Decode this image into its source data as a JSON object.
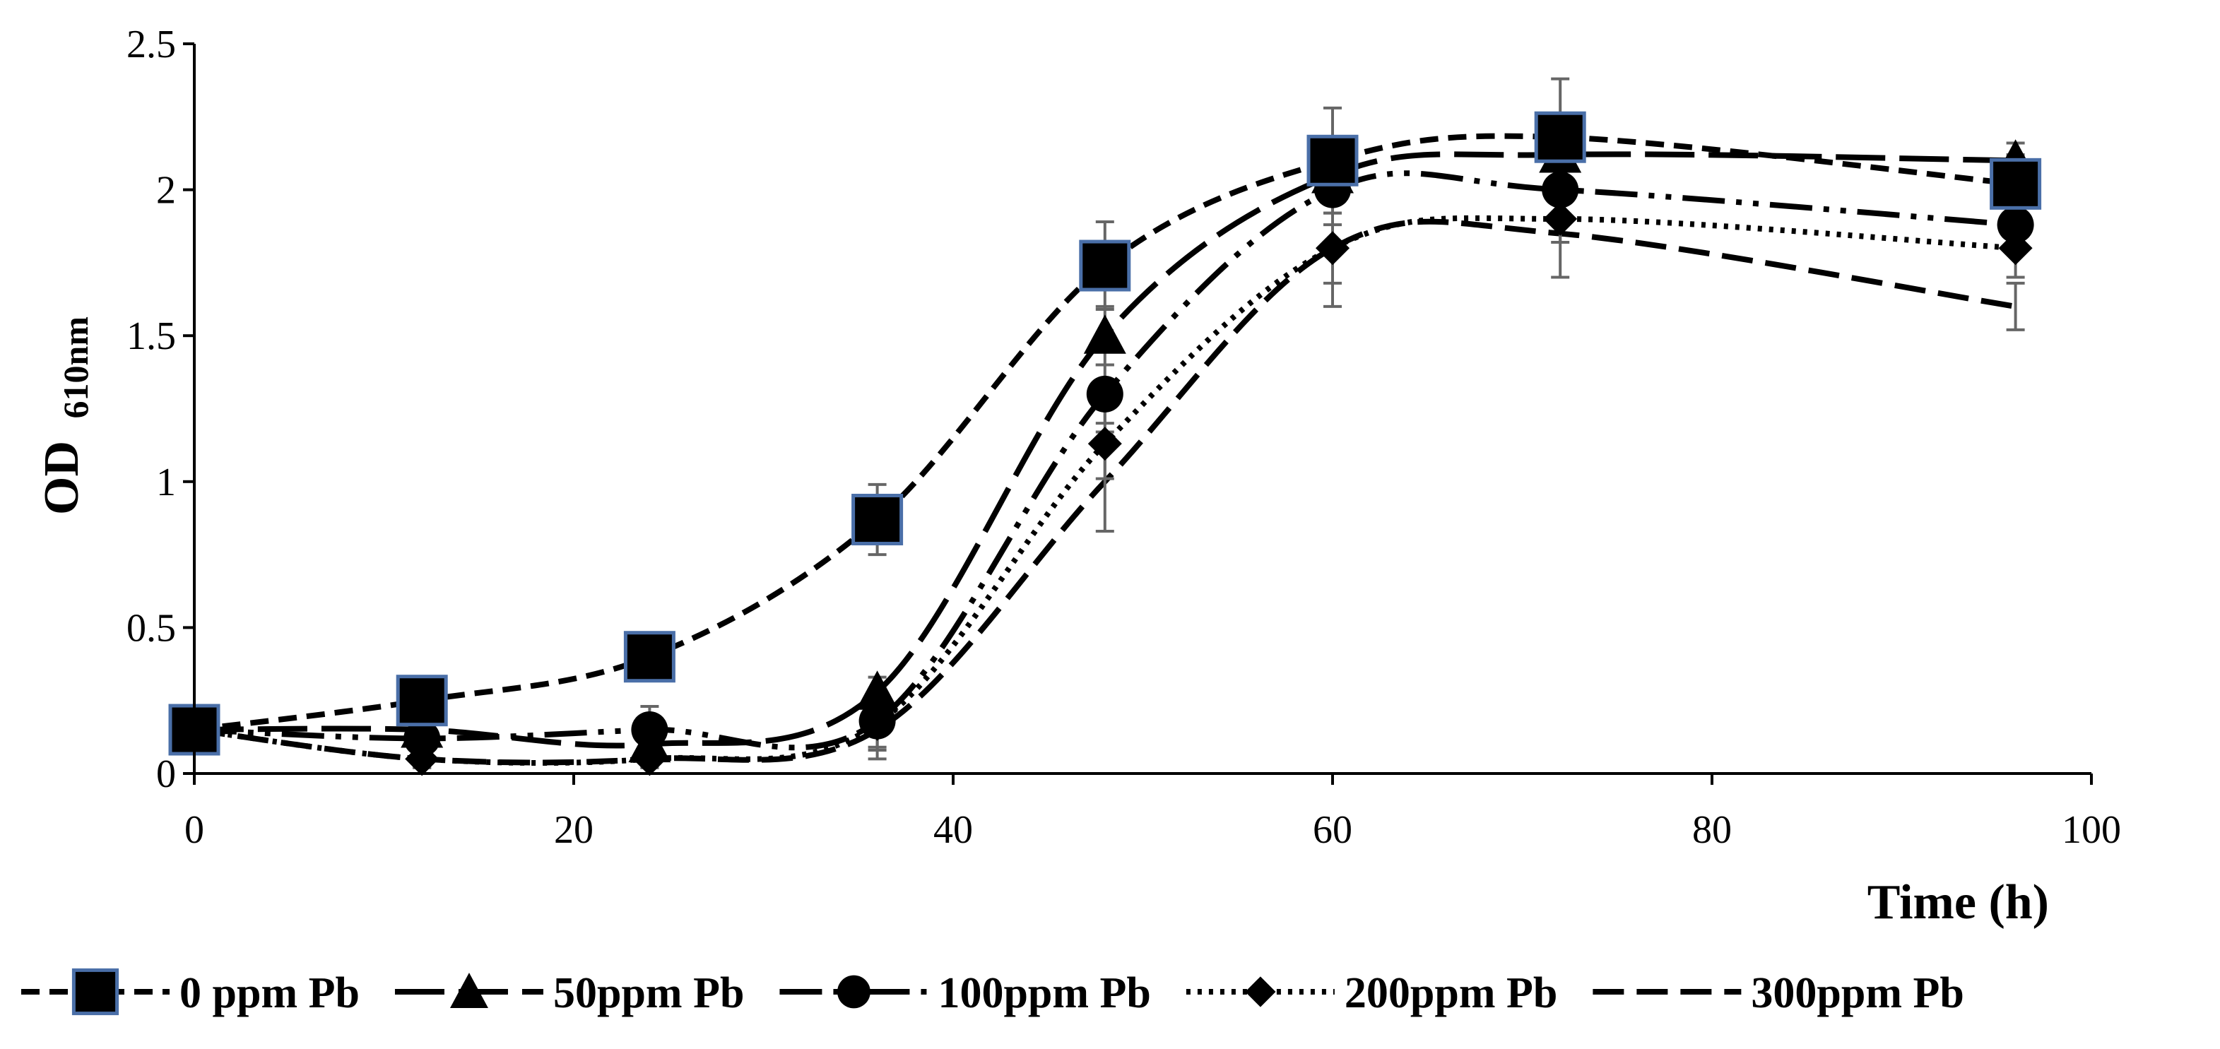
{
  "chart_data": {
    "type": "line",
    "title": "",
    "xlabel": "Time (h)",
    "ylabel_main": "OD",
    "ylabel_sub": "610nm",
    "xlim": [
      0,
      100
    ],
    "ylim": [
      0,
      2.5
    ],
    "xticks": [
      "0",
      "20",
      "40",
      "60",
      "80",
      "100"
    ],
    "yticks": [
      "0",
      "0.5",
      "1",
      "1.5",
      "2",
      "2.5"
    ],
    "grid": false,
    "legend_position": "bottom",
    "x": [
      0,
      12,
      24,
      36,
      48,
      60,
      72,
      96
    ],
    "series": [
      {
        "name": "0 ppm Pb",
        "marker": "square",
        "dash": "dashed",
        "values": [
          0.15,
          0.25,
          0.4,
          0.87,
          1.74,
          2.1,
          2.18,
          2.02
        ],
        "errors": [
          0.05,
          0.05,
          0.03,
          0.12,
          0.15,
          0.18,
          0.2,
          0.1
        ]
      },
      {
        "name": "50ppm Pb",
        "marker": "triangle",
        "dash": "long-dash",
        "values": [
          0.15,
          0.15,
          0.1,
          0.28,
          1.5,
          2.05,
          2.12,
          2.1
        ],
        "errors": [
          0.03,
          0.03,
          0.03,
          0.05,
          0.1,
          0.1,
          0.1,
          0.06
        ]
      },
      {
        "name": "100ppm Pb",
        "marker": "circle",
        "dash": "long-dash-dot-dot",
        "values": [
          0.15,
          0.12,
          0.15,
          0.18,
          1.3,
          2.0,
          2.0,
          1.88
        ],
        "errors": [
          0.03,
          0.05,
          0.08,
          0.1,
          0.1,
          0.12,
          0.12,
          0.08
        ]
      },
      {
        "name": "200ppm Pb",
        "marker": "diamond",
        "dash": "dotted",
        "values": [
          0.15,
          0.05,
          0.05,
          0.17,
          1.13,
          1.8,
          1.9,
          1.8
        ],
        "errors": [
          0.03,
          0.03,
          0.03,
          0.08,
          0.12,
          0.12,
          0.08,
          0.1
        ]
      },
      {
        "name": "300ppm Pb",
        "marker": "none",
        "dash": "medium-dash",
        "values": [
          0.15,
          0.05,
          0.05,
          0.15,
          1.0,
          1.8,
          1.85,
          1.6
        ],
        "errors": [
          0.03,
          0.03,
          0.03,
          0.1,
          0.17,
          0.2,
          0.15,
          0.08
        ]
      }
    ],
    "colors": {
      "line": "#000000",
      "marker_fill": "#000000",
      "square_outline": "#4a6fa8",
      "error_bar": "#666666",
      "axis": "#000000"
    }
  }
}
